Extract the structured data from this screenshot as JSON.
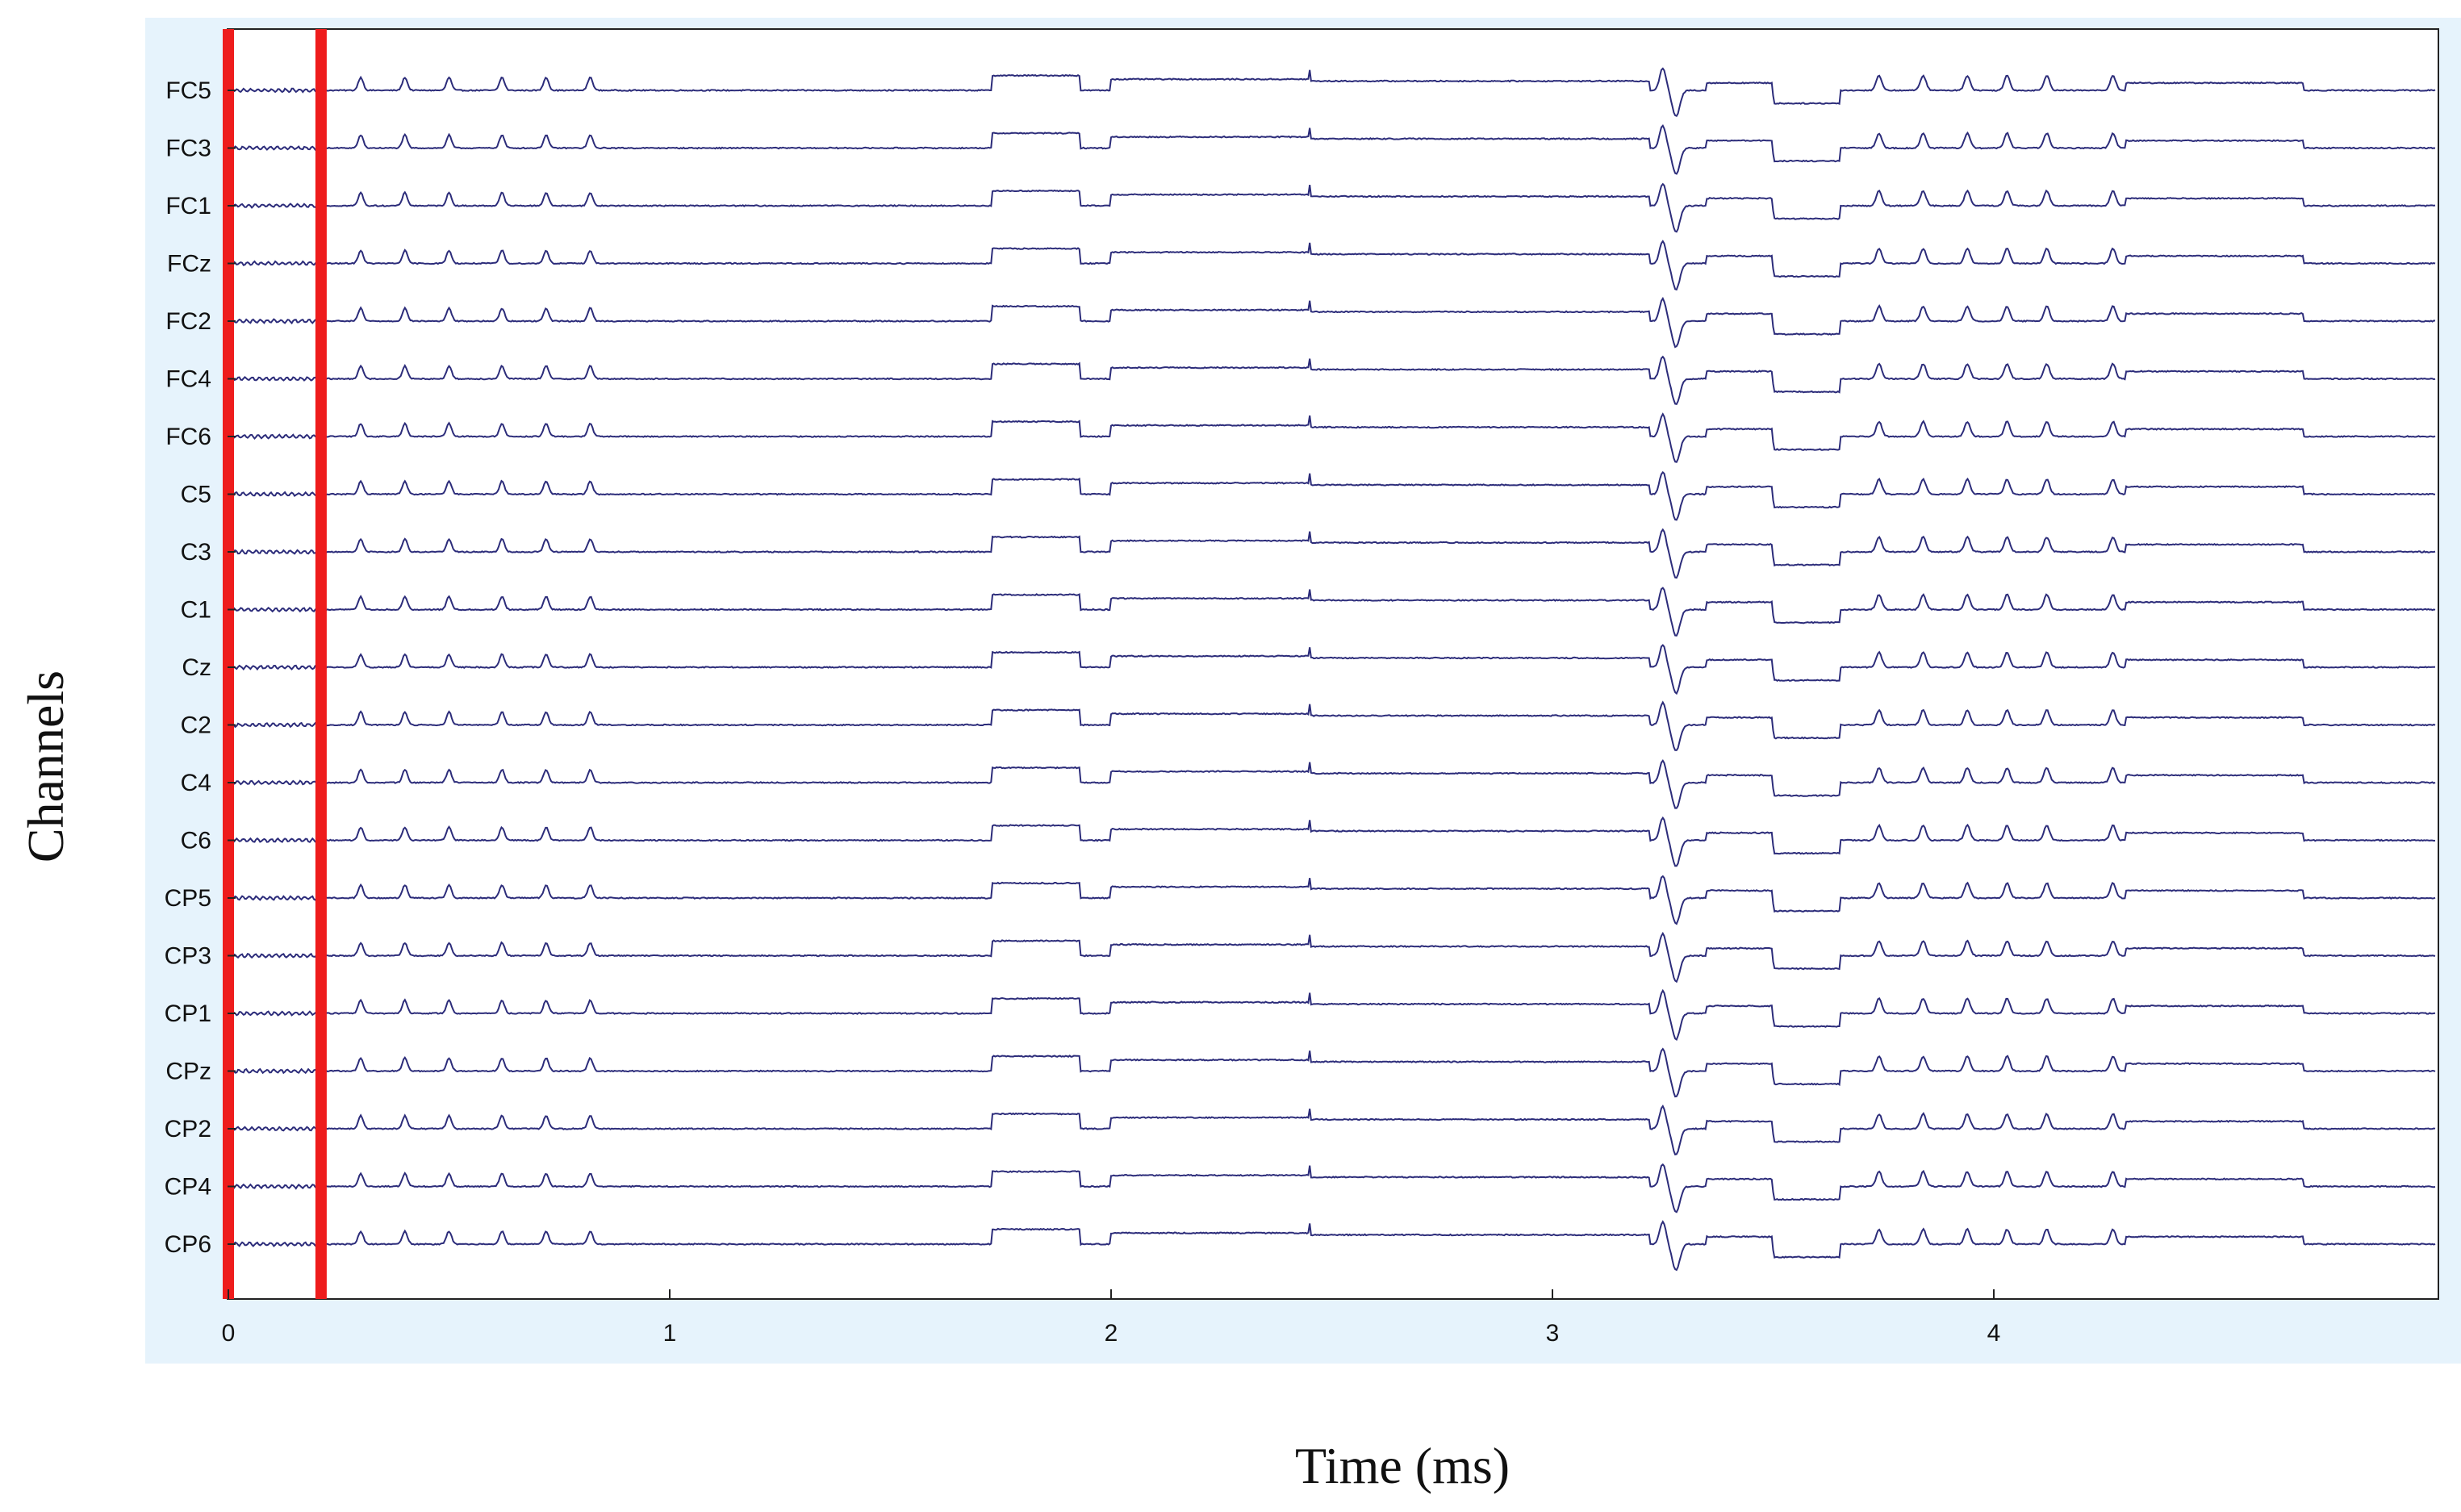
{
  "chart_data": {
    "type": "line",
    "xlabel": "Time (ms)",
    "ylabel": "Channels",
    "xlim": [
      0,
      5
    ],
    "x_ticks": [
      "0",
      "1",
      "2",
      "3",
      "4"
    ],
    "x_tick_values": [
      0,
      1,
      2,
      3,
      4
    ],
    "channels": [
      "FC5",
      "FC3",
      "FC1",
      "FCz",
      "FC2",
      "FC4",
      "FC6",
      "C5",
      "C3",
      "C1",
      "Cz",
      "C2",
      "C4",
      "C6",
      "CP5",
      "CP3",
      "CP1",
      "CPz",
      "CP2",
      "CP4",
      "CP6"
    ],
    "highlight_markers": [
      0,
      0.21
    ],
    "colors": {
      "trace": "#2c2c7a",
      "marker": "#ee1c1c",
      "frame_background": "#e6f3fc",
      "plot_background": "#ffffff"
    }
  }
}
